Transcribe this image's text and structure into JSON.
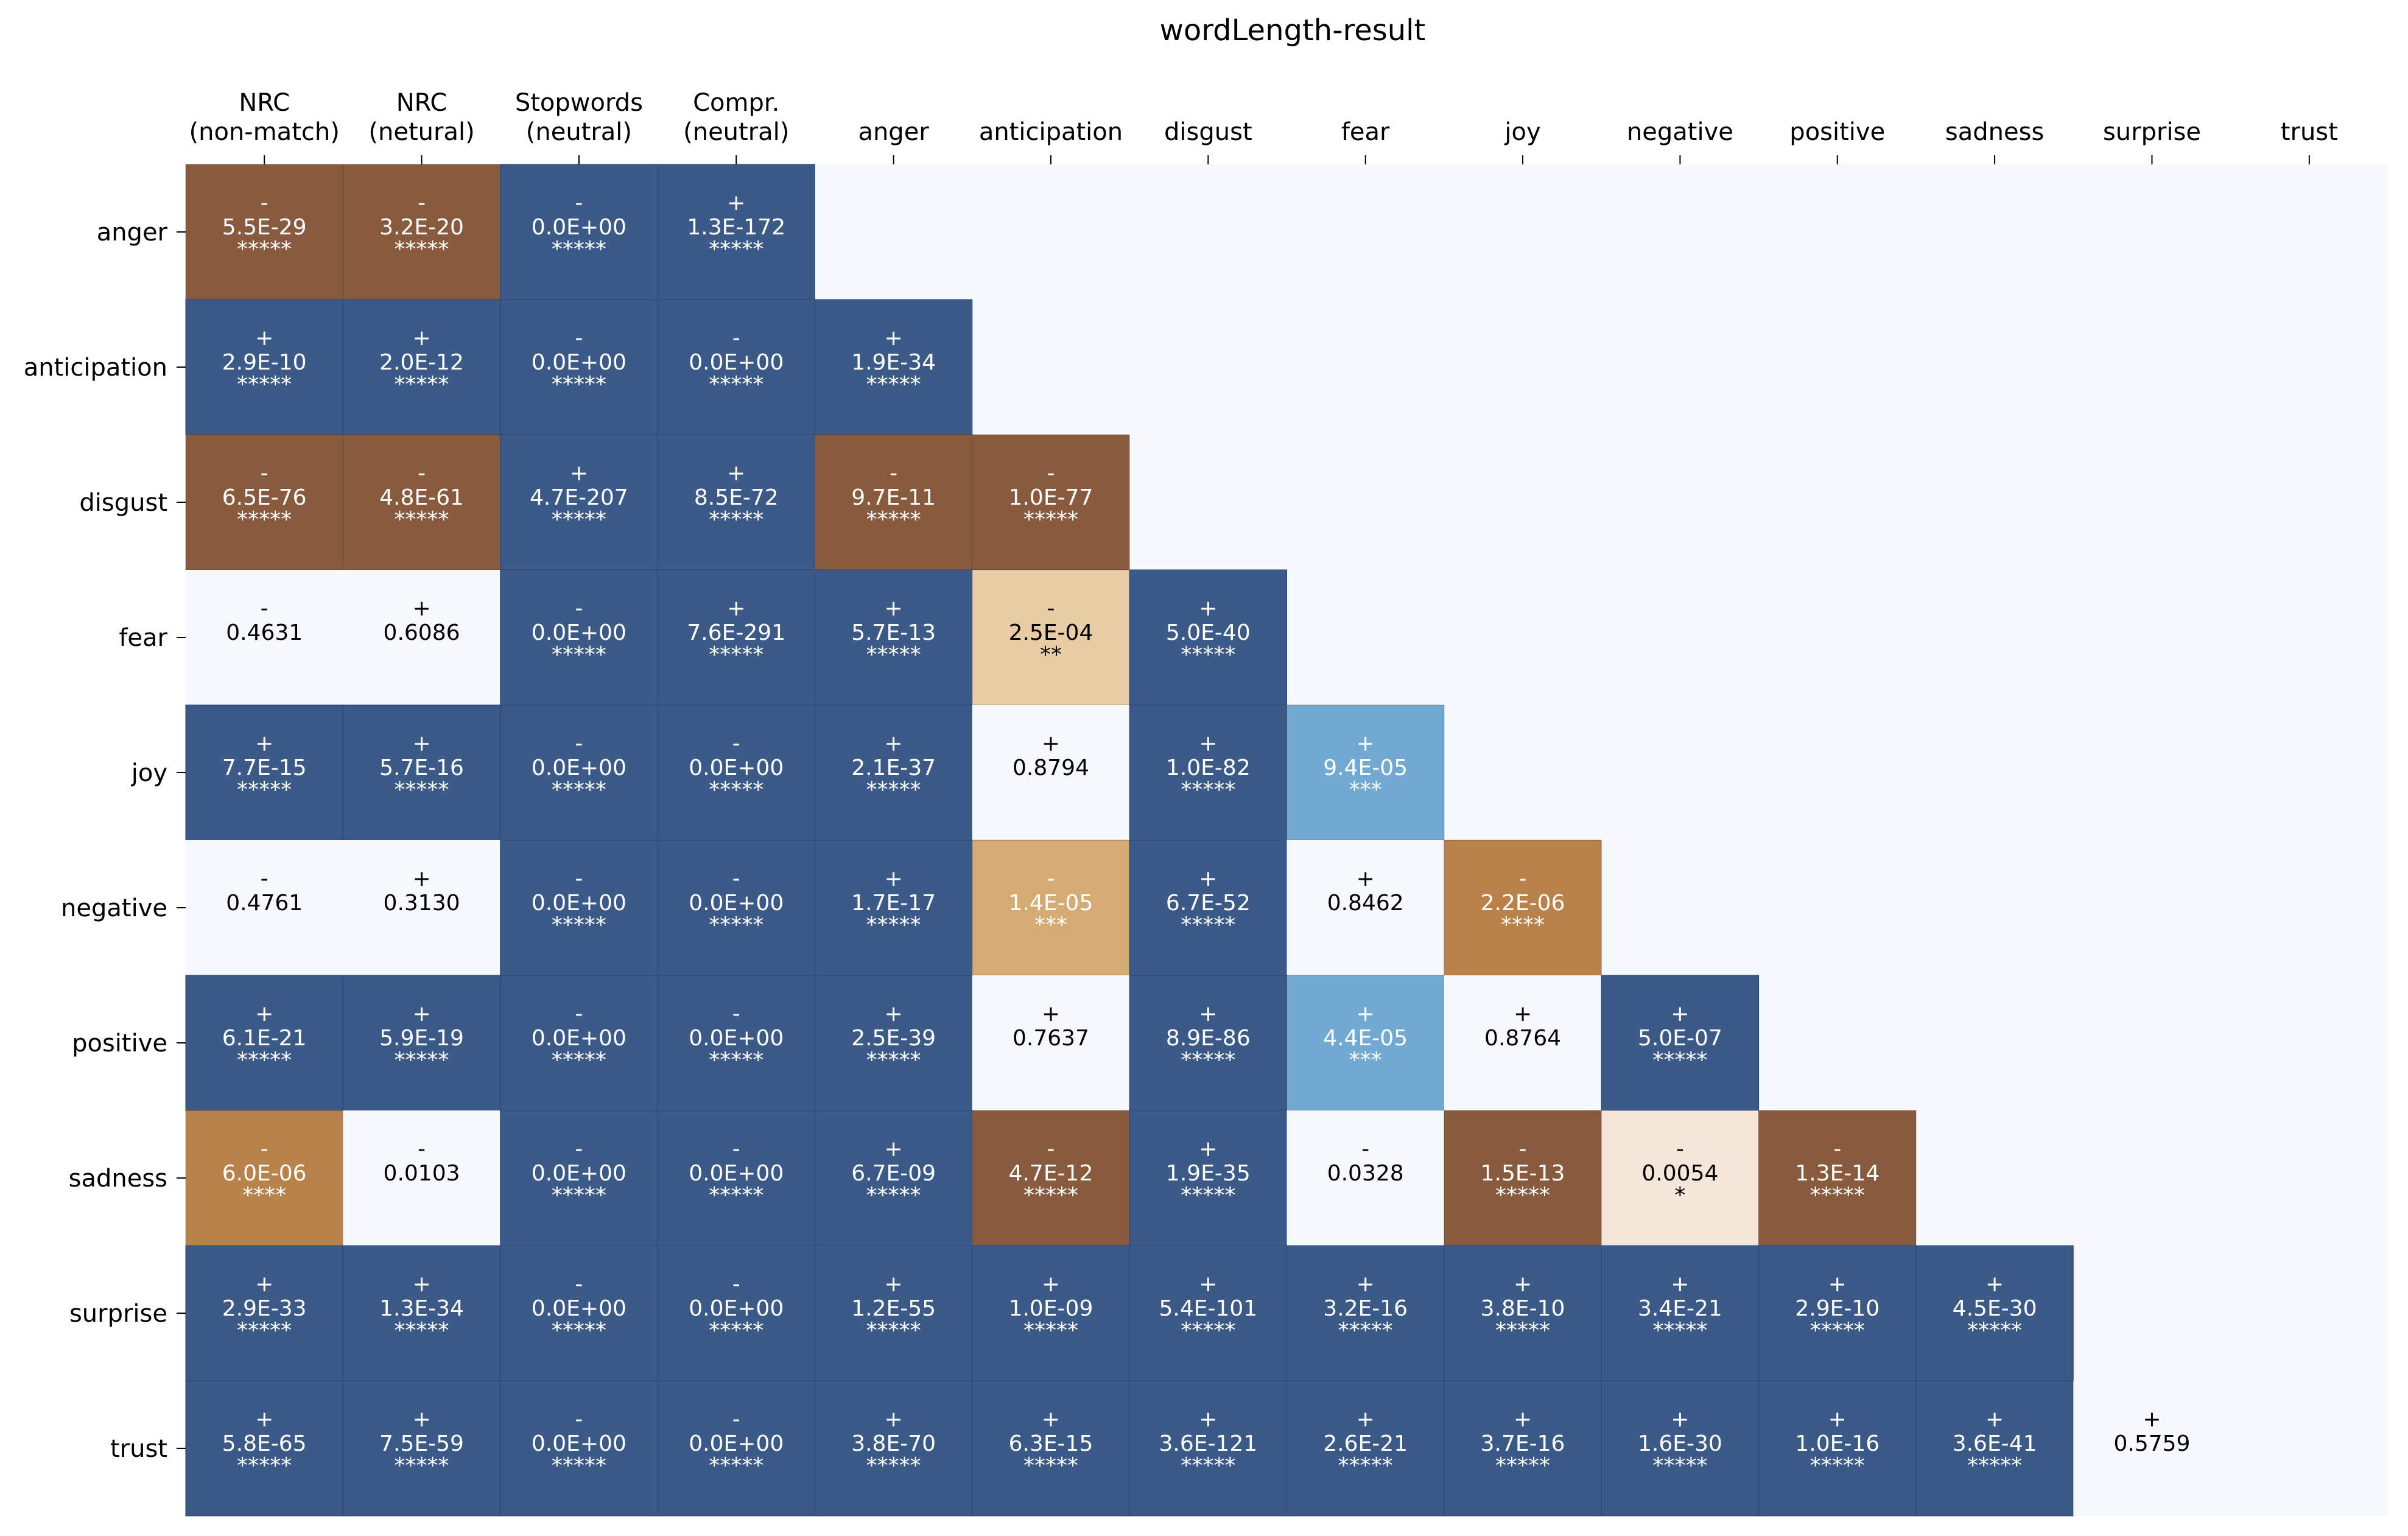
{
  "chart_data": {
    "type": "heatmap",
    "title": "wordLength-result",
    "xlabel": "",
    "ylabel": "",
    "grid": false,
    "legend": "none",
    "background_color": "#F5F9FE",
    "x_labels": [
      [
        "NRC",
        "(non-match)"
      ],
      [
        "NRC",
        "(netural)"
      ],
      [
        "Stopwords",
        "(neutral)"
      ],
      [
        "Compr.",
        "(neutral)"
      ],
      [
        "anger"
      ],
      [
        "anticipation"
      ],
      [
        "disgust"
      ],
      [
        "fear"
      ],
      [
        "joy"
      ],
      [
        "negative"
      ],
      [
        "positive"
      ],
      [
        "sadness"
      ],
      [
        "surprise"
      ],
      [
        "trust"
      ]
    ],
    "y_labels": [
      "anger",
      "anticipation",
      "disgust",
      "fear",
      "joy",
      "negative",
      "positive",
      "sadness",
      "surprise",
      "trust"
    ],
    "palette": {
      "dark_blue": "#3B5A88",
      "light_blue": "#72A9D2",
      "dark_brown": "#885A3E",
      "copper": "#B8824A",
      "tan": "#D4AB72",
      "light_tan": "#E8CCA4",
      "cream": "#F4E6D8",
      "white": "#F5F9FE"
    },
    "rows": [
      [
        {
          "sign": "-",
          "p": "5.5E-29",
          "stars": "*****",
          "color": "#885A3E"
        },
        {
          "sign": "-",
          "p": "3.2E-20",
          "stars": "*****",
          "color": "#885A3E"
        },
        {
          "sign": "-",
          "p": "0.0E+00",
          "stars": "*****",
          "color": "#3B5A88"
        },
        {
          "sign": "+",
          "p": "1.3E-172",
          "stars": "*****",
          "color": "#3B5A88"
        }
      ],
      [
        {
          "sign": "+",
          "p": "2.9E-10",
          "stars": "*****",
          "color": "#3B5A88"
        },
        {
          "sign": "+",
          "p": "2.0E-12",
          "stars": "*****",
          "color": "#3B5A88"
        },
        {
          "sign": "-",
          "p": "0.0E+00",
          "stars": "*****",
          "color": "#3B5A88"
        },
        {
          "sign": "-",
          "p": "0.0E+00",
          "stars": "*****",
          "color": "#3B5A88"
        },
        {
          "sign": "+",
          "p": "1.9E-34",
          "stars": "*****",
          "color": "#3B5A88"
        }
      ],
      [
        {
          "sign": "-",
          "p": "6.5E-76",
          "stars": "*****",
          "color": "#885A3E"
        },
        {
          "sign": "-",
          "p": "4.8E-61",
          "stars": "*****",
          "color": "#885A3E"
        },
        {
          "sign": "+",
          "p": "4.7E-207",
          "stars": "*****",
          "color": "#3B5A88"
        },
        {
          "sign": "+",
          "p": "8.5E-72",
          "stars": "*****",
          "color": "#3B5A88"
        },
        {
          "sign": "-",
          "p": "9.7E-11",
          "stars": "*****",
          "color": "#885A3E"
        },
        {
          "sign": "-",
          "p": "1.0E-77",
          "stars": "*****",
          "color": "#885A3E"
        }
      ],
      [
        {
          "sign": "-",
          "p": "0.4631",
          "stars": "",
          "color": "#F5F9FE"
        },
        {
          "sign": "+",
          "p": "0.6086",
          "stars": "",
          "color": "#F5F9FE"
        },
        {
          "sign": "-",
          "p": "0.0E+00",
          "stars": "*****",
          "color": "#3B5A88"
        },
        {
          "sign": "+",
          "p": "7.6E-291",
          "stars": "*****",
          "color": "#3B5A88"
        },
        {
          "sign": "+",
          "p": "5.7E-13",
          "stars": "*****",
          "color": "#3B5A88"
        },
        {
          "sign": "-",
          "p": "2.5E-04",
          "stars": "**",
          "color": "#E8CCA4"
        },
        {
          "sign": "+",
          "p": "5.0E-40",
          "stars": "*****",
          "color": "#3B5A88"
        }
      ],
      [
        {
          "sign": "+",
          "p": "7.7E-15",
          "stars": "*****",
          "color": "#3B5A88"
        },
        {
          "sign": "+",
          "p": "5.7E-16",
          "stars": "*****",
          "color": "#3B5A88"
        },
        {
          "sign": "-",
          "p": "0.0E+00",
          "stars": "*****",
          "color": "#3B5A88"
        },
        {
          "sign": "-",
          "p": "0.0E+00",
          "stars": "*****",
          "color": "#3B5A88"
        },
        {
          "sign": "+",
          "p": "2.1E-37",
          "stars": "*****",
          "color": "#3B5A88"
        },
        {
          "sign": "+",
          "p": "0.8794",
          "stars": "",
          "color": "#F5F9FE"
        },
        {
          "sign": "+",
          "p": "1.0E-82",
          "stars": "*****",
          "color": "#3B5A88"
        },
        {
          "sign": "+",
          "p": "9.4E-05",
          "stars": "***",
          "color": "#72A9D2"
        }
      ],
      [
        {
          "sign": "-",
          "p": "0.4761",
          "stars": "",
          "color": "#F5F9FE"
        },
        {
          "sign": "+",
          "p": "0.3130",
          "stars": "",
          "color": "#F5F9FE"
        },
        {
          "sign": "-",
          "p": "0.0E+00",
          "stars": "*****",
          "color": "#3B5A88"
        },
        {
          "sign": "-",
          "p": "0.0E+00",
          "stars": "*****",
          "color": "#3B5A88"
        },
        {
          "sign": "+",
          "p": "1.7E-17",
          "stars": "*****",
          "color": "#3B5A88"
        },
        {
          "sign": "-",
          "p": "1.4E-05",
          "stars": "***",
          "color": "#D4AB72"
        },
        {
          "sign": "+",
          "p": "6.7E-52",
          "stars": "*****",
          "color": "#3B5A88"
        },
        {
          "sign": "+",
          "p": "0.8462",
          "stars": "",
          "color": "#F5F9FE"
        },
        {
          "sign": "-",
          "p": "2.2E-06",
          "stars": "****",
          "color": "#B8824A"
        }
      ],
      [
        {
          "sign": "+",
          "p": "6.1E-21",
          "stars": "*****",
          "color": "#3B5A88"
        },
        {
          "sign": "+",
          "p": "5.9E-19",
          "stars": "*****",
          "color": "#3B5A88"
        },
        {
          "sign": "-",
          "p": "0.0E+00",
          "stars": "*****",
          "color": "#3B5A88"
        },
        {
          "sign": "-",
          "p": "0.0E+00",
          "stars": "*****",
          "color": "#3B5A88"
        },
        {
          "sign": "+",
          "p": "2.5E-39",
          "stars": "*****",
          "color": "#3B5A88"
        },
        {
          "sign": "+",
          "p": "0.7637",
          "stars": "",
          "color": "#F5F9FE"
        },
        {
          "sign": "+",
          "p": "8.9E-86",
          "stars": "*****",
          "color": "#3B5A88"
        },
        {
          "sign": "+",
          "p": "4.4E-05",
          "stars": "***",
          "color": "#72A9D2"
        },
        {
          "sign": "+",
          "p": "0.8764",
          "stars": "",
          "color": "#F5F9FE"
        },
        {
          "sign": "+",
          "p": "5.0E-07",
          "stars": "*****",
          "color": "#3B5A88"
        }
      ],
      [
        {
          "sign": "-",
          "p": "6.0E-06",
          "stars": "****",
          "color": "#B8824A"
        },
        {
          "sign": "-",
          "p": "0.0103",
          "stars": "",
          "color": "#F5F9FE"
        },
        {
          "sign": "-",
          "p": "0.0E+00",
          "stars": "*****",
          "color": "#3B5A88"
        },
        {
          "sign": "-",
          "p": "0.0E+00",
          "stars": "*****",
          "color": "#3B5A88"
        },
        {
          "sign": "+",
          "p": "6.7E-09",
          "stars": "*****",
          "color": "#3B5A88"
        },
        {
          "sign": "-",
          "p": "4.7E-12",
          "stars": "*****",
          "color": "#885A3E"
        },
        {
          "sign": "+",
          "p": "1.9E-35",
          "stars": "*****",
          "color": "#3B5A88"
        },
        {
          "sign": "-",
          "p": "0.0328",
          "stars": "",
          "color": "#F5F9FE"
        },
        {
          "sign": "-",
          "p": "1.5E-13",
          "stars": "*****",
          "color": "#885A3E"
        },
        {
          "sign": "-",
          "p": "0.0054",
          "stars": "*",
          "color": "#F4E6D8"
        },
        {
          "sign": "-",
          "p": "1.3E-14",
          "stars": "*****",
          "color": "#885A3E"
        }
      ],
      [
        {
          "sign": "+",
          "p": "2.9E-33",
          "stars": "*****",
          "color": "#3B5A88"
        },
        {
          "sign": "+",
          "p": "1.3E-34",
          "stars": "*****",
          "color": "#3B5A88"
        },
        {
          "sign": "-",
          "p": "0.0E+00",
          "stars": "*****",
          "color": "#3B5A88"
        },
        {
          "sign": "-",
          "p": "0.0E+00",
          "stars": "*****",
          "color": "#3B5A88"
        },
        {
          "sign": "+",
          "p": "1.2E-55",
          "stars": "*****",
          "color": "#3B5A88"
        },
        {
          "sign": "+",
          "p": "1.0E-09",
          "stars": "*****",
          "color": "#3B5A88"
        },
        {
          "sign": "+",
          "p": "5.4E-101",
          "stars": "*****",
          "color": "#3B5A88"
        },
        {
          "sign": "+",
          "p": "3.2E-16",
          "stars": "*****",
          "color": "#3B5A88"
        },
        {
          "sign": "+",
          "p": "3.8E-10",
          "stars": "*****",
          "color": "#3B5A88"
        },
        {
          "sign": "+",
          "p": "3.4E-21",
          "stars": "*****",
          "color": "#3B5A88"
        },
        {
          "sign": "+",
          "p": "2.9E-10",
          "stars": "*****",
          "color": "#3B5A88"
        },
        {
          "sign": "+",
          "p": "4.5E-30",
          "stars": "*****",
          "color": "#3B5A88"
        }
      ],
      [
        {
          "sign": "+",
          "p": "5.8E-65",
          "stars": "*****",
          "color": "#3B5A88"
        },
        {
          "sign": "+",
          "p": "7.5E-59",
          "stars": "*****",
          "color": "#3B5A88"
        },
        {
          "sign": "-",
          "p": "0.0E+00",
          "stars": "*****",
          "color": "#3B5A88"
        },
        {
          "sign": "-",
          "p": "0.0E+00",
          "stars": "*****",
          "color": "#3B5A88"
        },
        {
          "sign": "+",
          "p": "3.8E-70",
          "stars": "*****",
          "color": "#3B5A88"
        },
        {
          "sign": "+",
          "p": "6.3E-15",
          "stars": "*****",
          "color": "#3B5A88"
        },
        {
          "sign": "+",
          "p": "3.6E-121",
          "stars": "*****",
          "color": "#3B5A88"
        },
        {
          "sign": "+",
          "p": "2.6E-21",
          "stars": "*****",
          "color": "#3B5A88"
        },
        {
          "sign": "+",
          "p": "3.7E-16",
          "stars": "*****",
          "color": "#3B5A88"
        },
        {
          "sign": "+",
          "p": "1.6E-30",
          "stars": "*****",
          "color": "#3B5A88"
        },
        {
          "sign": "+",
          "p": "1.0E-16",
          "stars": "*****",
          "color": "#3B5A88"
        },
        {
          "sign": "+",
          "p": "3.6E-41",
          "stars": "*****",
          "color": "#3B5A88"
        },
        {
          "sign": "+",
          "p": "0.5759",
          "stars": "",
          "color": "#F5F9FE"
        }
      ]
    ]
  }
}
